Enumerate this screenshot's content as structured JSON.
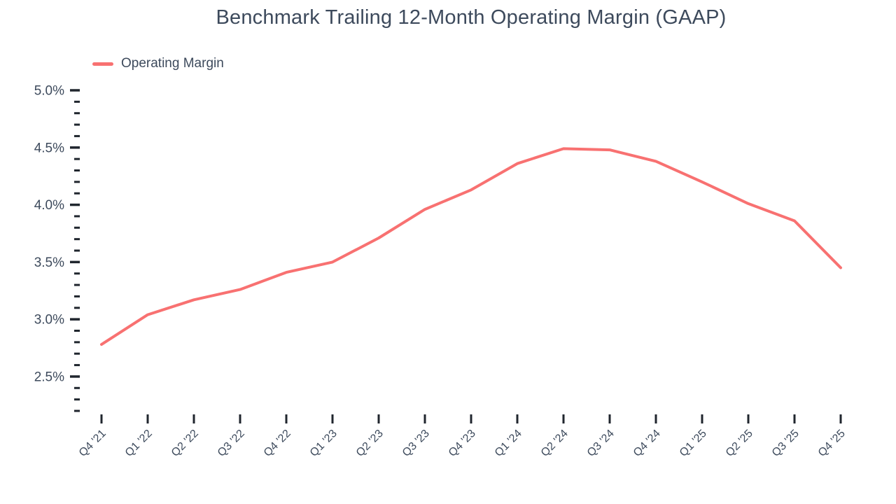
{
  "title": "Benchmark Trailing 12-Month Operating Margin (GAAP)",
  "legend": {
    "items": [
      {
        "label": "Operating Margin",
        "color": "#f87171"
      }
    ]
  },
  "colors": {
    "series": "#f87171",
    "text": "#3d4a5c",
    "tick": "#20262e",
    "background": "#ffffff"
  },
  "chart_data": {
    "type": "line",
    "title": "Benchmark Trailing 12-Month Operating Margin (GAAP)",
    "categories": [
      "Q4 '21",
      "Q1 '22",
      "Q2 '22",
      "Q3 '22",
      "Q4 '22",
      "Q1 '23",
      "Q2 '23",
      "Q3 '23",
      "Q4 '23",
      "Q1 '24",
      "Q2 '24",
      "Q3 '24",
      "Q4 '24",
      "Q1 '25",
      "Q2 '25",
      "Q3 '25",
      "Q4 '25"
    ],
    "series": [
      {
        "name": "Operating Margin",
        "color": "#f87171",
        "values": [
          2.78,
          3.04,
          3.17,
          3.26,
          3.41,
          3.5,
          3.71,
          3.96,
          4.13,
          4.36,
          4.49,
          4.48,
          4.38,
          4.2,
          4.01,
          3.86,
          3.45
        ]
      }
    ],
    "xlabel": "",
    "ylabel": "",
    "y_unit": "%",
    "ylim": [
      2.2,
      5.0
    ],
    "y_major_ticks": [
      5.0,
      4.5,
      4.0,
      3.5,
      3.0,
      2.5
    ],
    "y_tick_labels": [
      "5.0%",
      "4.5%",
      "4.0%",
      "3.5%",
      "3.0%",
      "2.5%"
    ],
    "y_minor_step": 0.1,
    "grid": false,
    "legend_position": "top-left",
    "x_label_rotation": -45
  }
}
